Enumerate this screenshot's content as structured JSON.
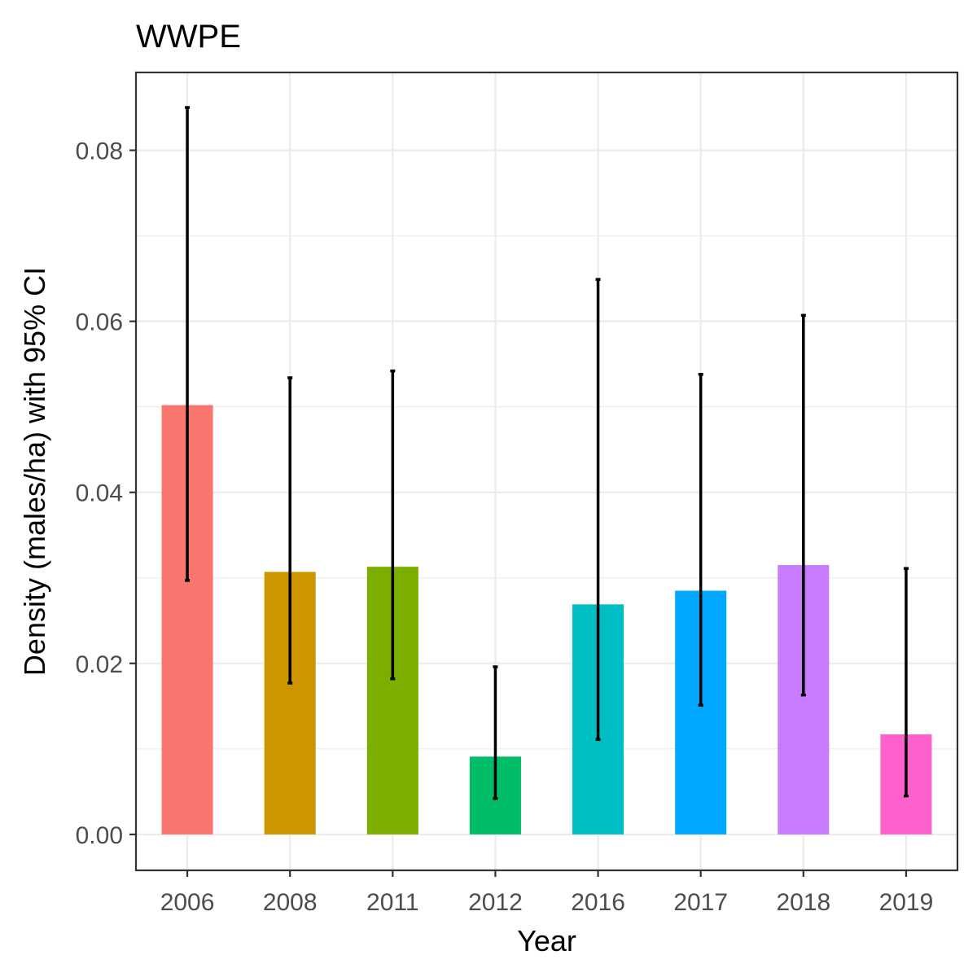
{
  "chart_data": {
    "type": "bar",
    "title": "WWPE",
    "xlabel": "Year",
    "ylabel": "Density (males/ha) with 95% CI",
    "categories": [
      "2006",
      "2008",
      "2011",
      "2012",
      "2016",
      "2017",
      "2018",
      "2019"
    ],
    "values": [
      0.0502,
      0.0307,
      0.0313,
      0.0091,
      0.0269,
      0.0285,
      0.0315,
      0.0117
    ],
    "ci_lower": [
      0.0297,
      0.0177,
      0.0182,
      0.0042,
      0.0111,
      0.0151,
      0.0163,
      0.0045
    ],
    "ci_upper": [
      0.085,
      0.0534,
      0.0542,
      0.0196,
      0.0649,
      0.0538,
      0.0607,
      0.0311
    ],
    "colors": [
      "#F8766D",
      "#CD9600",
      "#7CAE00",
      "#00BE67",
      "#00BFC4",
      "#00A9FF",
      "#C77CFF",
      "#FF61CC"
    ],
    "ylim": [
      -0.0042,
      0.0891
    ],
    "yticks": [
      0.0,
      0.02,
      0.04,
      0.06,
      0.08
    ],
    "ytick_labels": [
      "0.00",
      "0.02",
      "0.04",
      "0.06",
      "0.08"
    ],
    "grid": true,
    "legend": "none"
  }
}
